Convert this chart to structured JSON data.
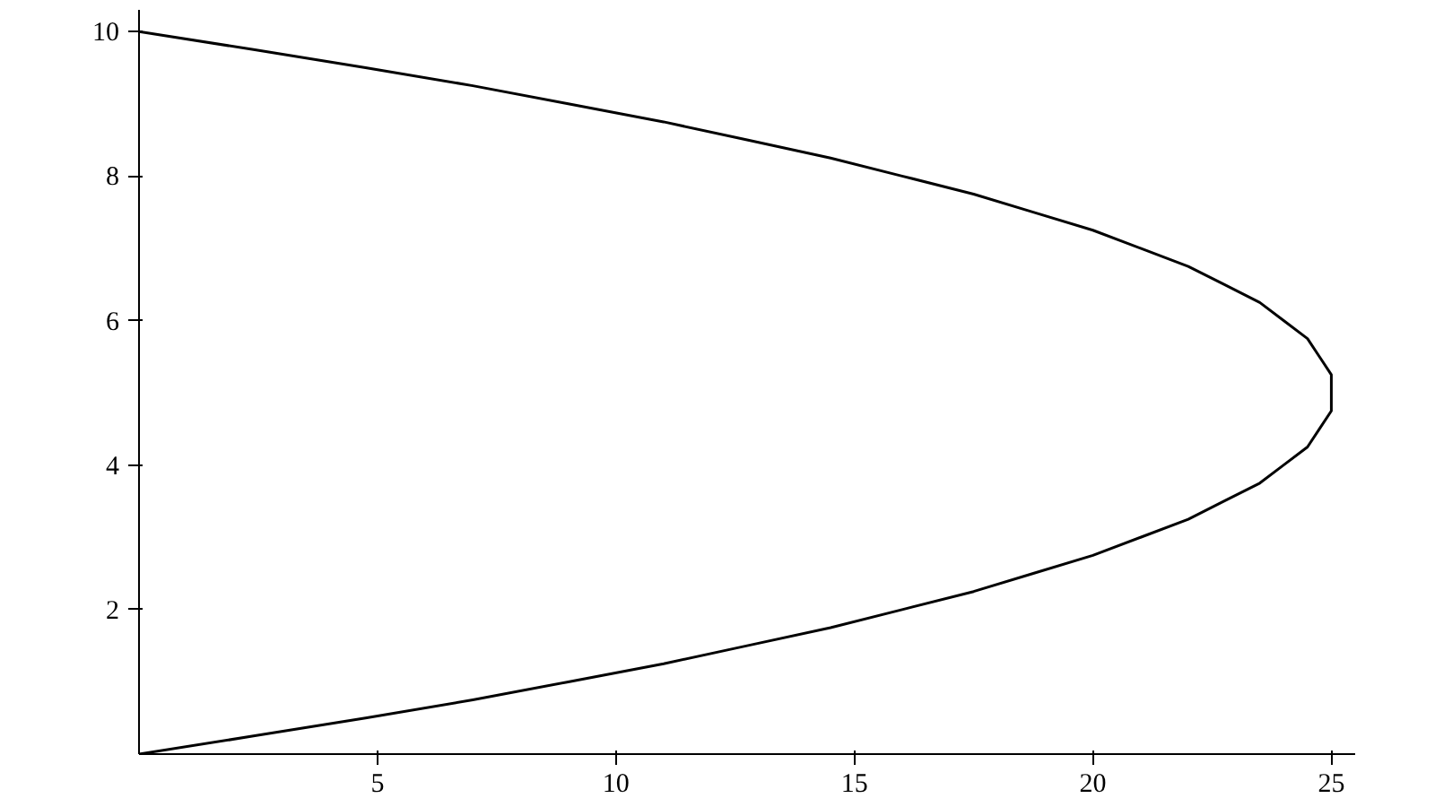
{
  "chart_data": {
    "type": "line",
    "x": [
      0,
      2.4,
      4.75,
      7,
      9,
      11,
      12.75,
      14.5,
      16,
      17.5,
      18.75,
      20,
      21,
      22,
      22.75,
      23.5,
      24,
      24.5,
      24.75,
      25,
      25,
      24.75,
      24.5,
      24,
      23.5,
      22.75,
      22,
      21,
      20,
      18.75,
      17.5,
      16,
      14.5,
      12.75,
      11,
      9,
      7,
      4.75,
      2.4,
      0
    ],
    "series": [
      {
        "color": "#000000",
        "values": [
          0,
          0.25,
          0.5,
          0.75,
          1,
          1.25,
          1.5,
          1.75,
          2,
          2.25,
          2.5,
          2.75,
          3,
          3.25,
          3.5,
          3.75,
          4,
          4.25,
          4.5,
          4.75,
          5.25,
          5.5,
          5.75,
          6,
          6.25,
          6.5,
          6.75,
          7,
          7.25,
          7.5,
          7.75,
          8,
          8.25,
          8.5,
          8.75,
          9,
          9.25,
          9.5,
          9.75,
          10
        ]
      }
    ],
    "xlim": [
      0,
      25.5
    ],
    "ylim": [
      0,
      10.3
    ],
    "xticks": [
      5,
      10,
      15,
      20,
      25
    ],
    "yticks": [
      2,
      4,
      6,
      8,
      10
    ],
    "grid": false,
    "marker": "none",
    "line_style": "solid"
  }
}
